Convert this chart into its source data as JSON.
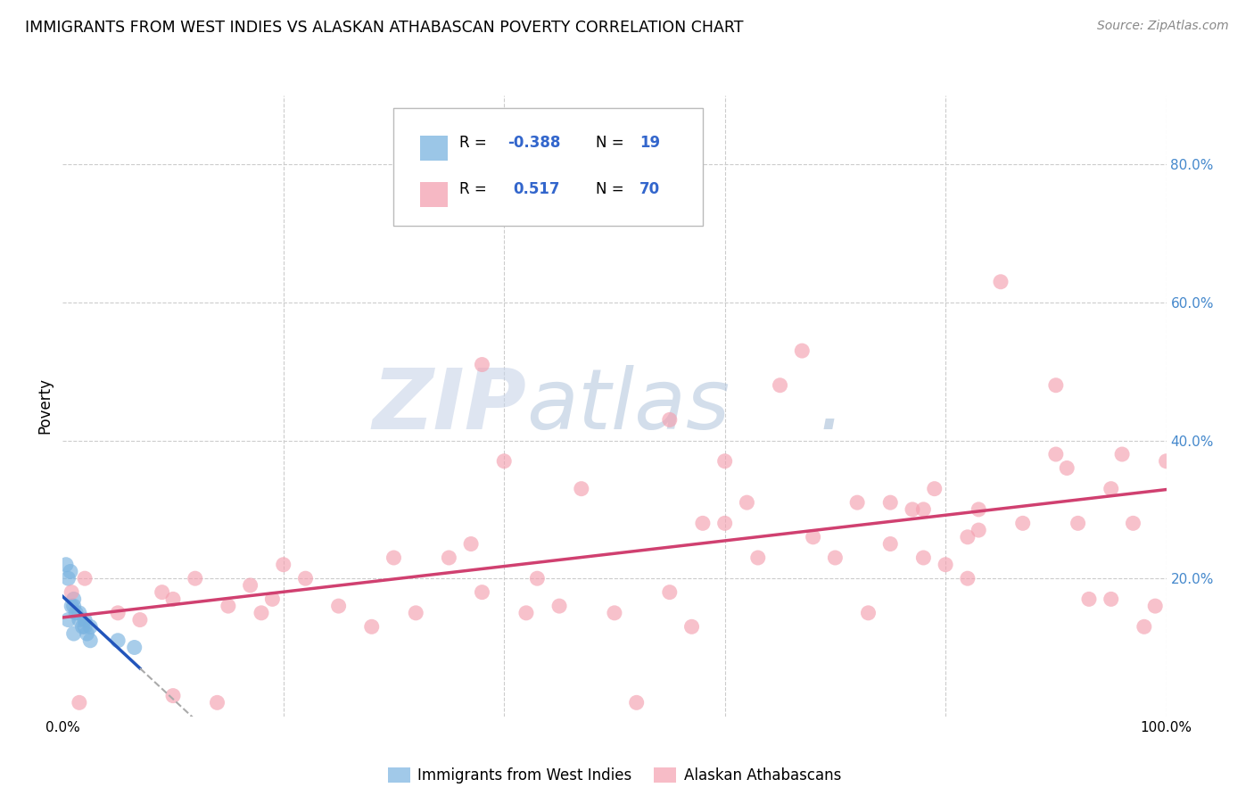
{
  "title": "IMMIGRANTS FROM WEST INDIES VS ALASKAN ATHABASCAN POVERTY CORRELATION CHART",
  "source": "Source: ZipAtlas.com",
  "ylabel": "Poverty",
  "xlim": [
    0,
    100
  ],
  "ylim": [
    0,
    90
  ],
  "xticks": [
    0,
    20,
    40,
    60,
    80,
    100
  ],
  "yticks": [
    0,
    20,
    40,
    60,
    80
  ],
  "grid_color": "#cccccc",
  "blue_color": "#7ab3e0",
  "pink_color": "#f4a0b0",
  "blue_line_color": "#2255bb",
  "pink_line_color": "#d04070",
  "blue_dashed_color": "#aaaaaa",
  "blue_R": -0.388,
  "blue_N": 19,
  "pink_R": 0.517,
  "pink_N": 70,
  "legend_label_blue": "Immigrants from West Indies",
  "legend_label_pink": "Alaskan Athabascans",
  "blue_x": [
    0.5,
    1.0,
    1.2,
    1.5,
    1.8,
    2.0,
    2.2,
    2.5,
    0.8,
    0.3,
    0.7,
    1.0,
    1.5,
    2.0,
    2.5,
    0.5,
    1.0,
    5.0,
    6.5
  ],
  "blue_y": [
    20,
    17,
    15,
    14,
    13,
    14,
    12,
    13,
    16,
    22,
    21,
    16,
    15,
    13,
    11,
    14,
    12,
    11,
    10
  ],
  "pink_x": [
    0.8,
    2.0,
    5.0,
    7.0,
    9.0,
    10.0,
    12.0,
    14.0,
    15.0,
    17.0,
    18.0,
    19.0,
    20.0,
    22.0,
    25.0,
    28.0,
    30.0,
    32.0,
    35.0,
    37.0,
    38.0,
    40.0,
    42.0,
    43.0,
    45.0,
    47.0,
    50.0,
    52.0,
    55.0,
    57.0,
    58.0,
    60.0,
    62.0,
    63.0,
    65.0,
    67.0,
    68.0,
    70.0,
    72.0,
    73.0,
    75.0,
    77.0,
    78.0,
    79.0,
    80.0,
    82.0,
    83.0,
    85.0,
    87.0,
    90.0,
    92.0,
    93.0,
    95.0,
    96.0,
    97.0,
    98.0,
    99.0,
    60.0,
    38.0,
    55.0,
    75.0,
    78.0,
    82.0,
    83.0,
    90.0,
    91.0,
    95.0,
    100.0,
    10.0,
    1.5
  ],
  "pink_y": [
    18,
    20,
    15,
    14,
    18,
    17,
    20,
    2,
    16,
    19,
    15,
    17,
    22,
    20,
    16,
    13,
    23,
    15,
    23,
    25,
    18,
    37,
    15,
    20,
    16,
    33,
    15,
    2,
    18,
    13,
    28,
    28,
    31,
    23,
    48,
    53,
    26,
    23,
    31,
    15,
    25,
    30,
    23,
    33,
    22,
    20,
    30,
    63,
    28,
    48,
    28,
    17,
    33,
    38,
    28,
    13,
    16,
    37,
    51,
    43,
    31,
    30,
    26,
    27,
    38,
    36,
    17,
    37,
    3,
    2
  ]
}
